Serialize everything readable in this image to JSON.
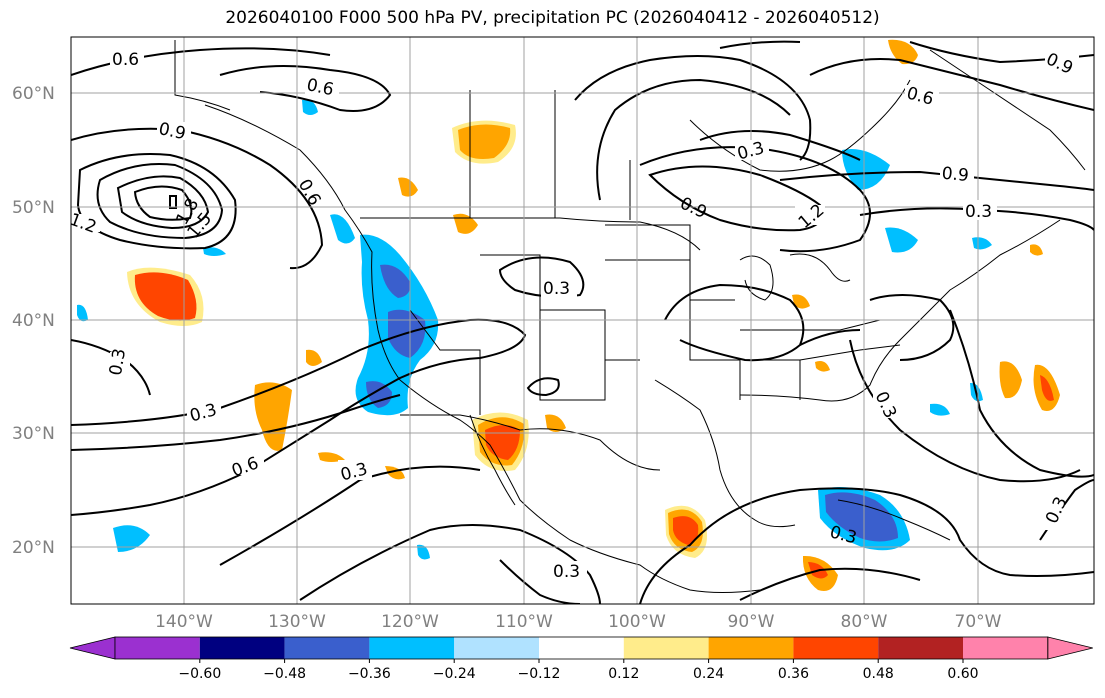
{
  "title": "2026040100 F000 500 hPa PV, precipitation PC (2026040412 - 2026040512)",
  "map": {
    "lat_labels": [
      "60°N",
      "50°N",
      "40°N",
      "30°N",
      "20°N"
    ],
    "lon_labels": [
      "140°W",
      "130°W",
      "120°W",
      "110°W",
      "100°W",
      "90°W",
      "80°W",
      "70°W"
    ],
    "contour_labels": [
      "0.6",
      "0.6",
      "0.9",
      "1.2",
      "1.8",
      "1.5",
      "0.6",
      "0.3",
      "0.3",
      "0.3",
      "0.6",
      "0.3",
      "0.3",
      "0.3",
      "0.9",
      "1.2",
      "0.9",
      "0.6",
      "0.3",
      "0.9",
      "0.3",
      "0.3",
      "0.3"
    ]
  },
  "colorbar": {
    "ticks": [
      "−0.60",
      "−0.48",
      "−0.36",
      "−0.24",
      "−0.12",
      "0.12",
      "0.24",
      "0.36",
      "0.48",
      "0.60"
    ],
    "colors": [
      "#9b30d0",
      "#000080",
      "#3a5fcd",
      "#00bfff",
      "#b0e2ff",
      "#ffffff",
      "#ffec8b",
      "#ffa500",
      "#ff4500",
      "#b22222",
      "#ff82ab",
      "#ff82ab"
    ]
  }
}
